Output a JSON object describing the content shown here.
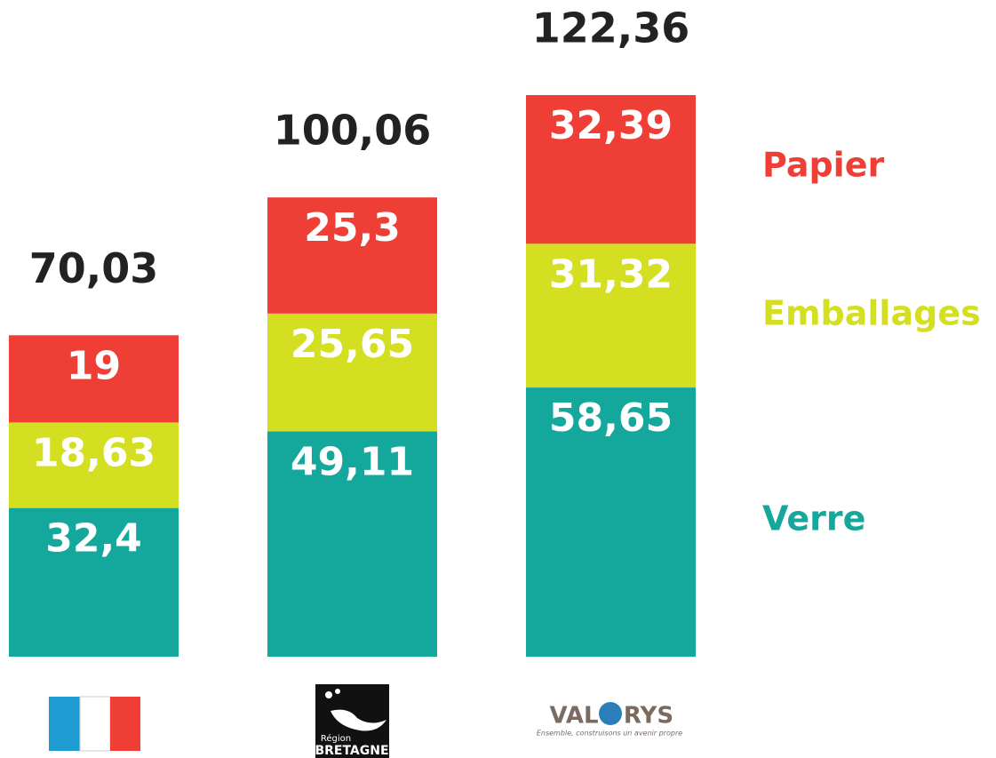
{
  "chart_data": {
    "type": "stacked_bar",
    "categories": [
      null,
      null,
      null
    ],
    "series": [
      {
        "name": "Verre",
        "color": "#14a89c",
        "values": [
          32.4,
          49.11,
          58.65
        ],
        "value_labels": [
          "32,4",
          "49,11",
          "58,65"
        ]
      },
      {
        "name": "Emballages",
        "color": "#d4df22",
        "values": [
          18.63,
          25.65,
          31.32
        ],
        "value_labels": [
          "18,63",
          "25,65",
          "31,32"
        ]
      },
      {
        "name": "Papier",
        "color": "#ef3e36",
        "values": [
          19,
          25.3,
          32.39
        ],
        "value_labels": [
          "19",
          "25,3",
          "32,39"
        ]
      }
    ],
    "totals": [
      70.03,
      100.06,
      122.36
    ],
    "total_labels": [
      "70,03",
      "100,06",
      "122,36"
    ],
    "logos": {
      "bretagne": [
        "Région",
        "BRETAGNE"
      ],
      "valorys": [
        "VAL",
        "RYS",
        "Ensemble, construisons un avenir propre"
      ]
    }
  }
}
